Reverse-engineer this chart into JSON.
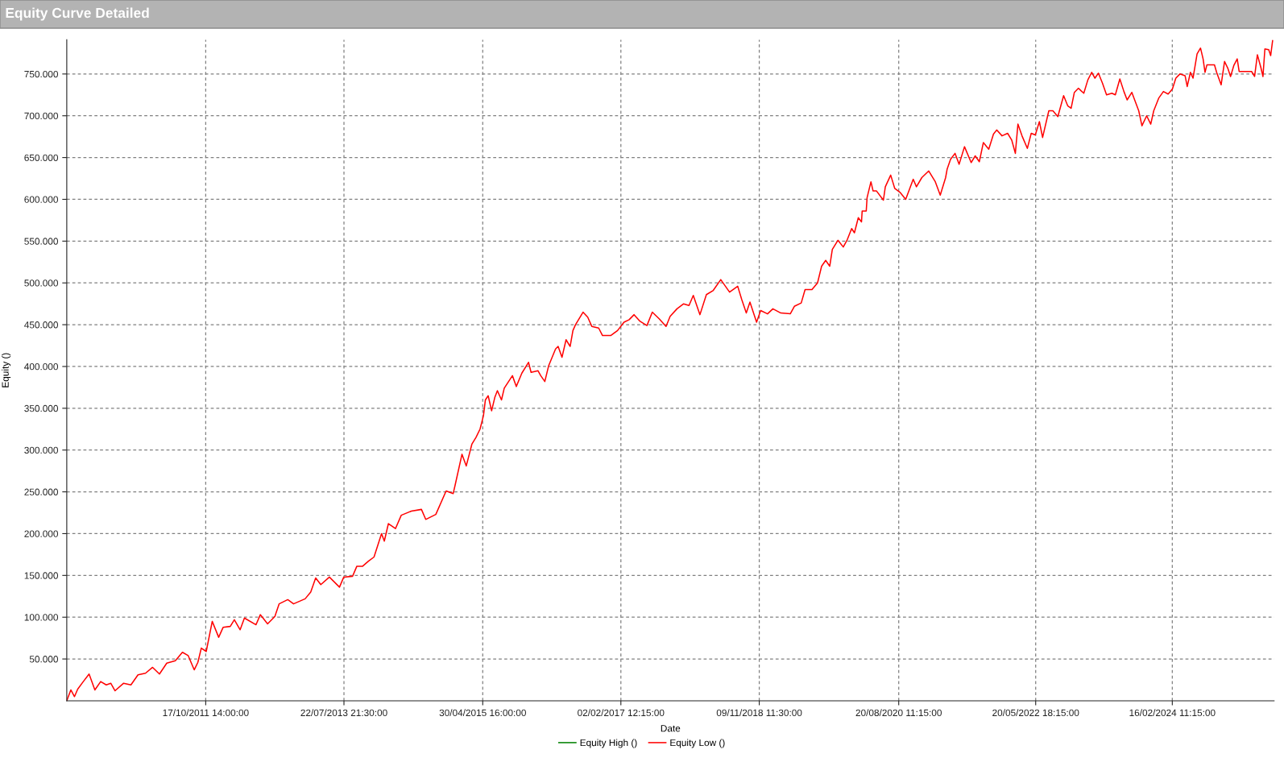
{
  "chart_data": {
    "type": "line",
    "title": "Equity Curve Detailed",
    "xlabel": "Date",
    "ylabel": "Equity ()",
    "x": [
      "2010-01-08",
      "2010-01-27",
      "2010-02-13",
      "2010-02-28",
      "2010-03-26",
      "2010-04-22",
      "2010-05-19",
      "2010-06-15",
      "2010-07-11",
      "2010-08-01",
      "2010-08-21",
      "2010-09-30",
      "2010-11-03",
      "2010-12-06",
      "2011-01-10",
      "2011-02-12",
      "2011-03-16",
      "2011-04-19",
      "2011-05-29",
      "2011-07-01",
      "2011-07-28",
      "2011-08-25",
      "2011-09-11",
      "2011-09-27",
      "2011-10-20",
      "2011-11-17",
      "2011-12-17",
      "2012-01-07",
      "2012-02-09",
      "2012-02-28",
      "2012-03-26",
      "2012-04-15",
      "2012-06-08",
      "2012-06-28",
      "2012-08-01",
      "2012-09-04",
      "2012-09-24",
      "2012-11-03",
      "2012-11-30",
      "2013-01-23",
      "2013-02-18",
      "2013-03-13",
      "2013-04-06",
      "2013-05-16",
      "2013-07-02",
      "2013-07-22",
      "2013-09-01",
      "2013-09-21",
      "2013-10-18",
      "2013-11-14",
      "2013-12-10",
      "2014-01-14",
      "2014-01-27",
      "2014-02-15",
      "2014-03-20",
      "2014-04-16",
      "2014-06-02",
      "2014-07-19",
      "2014-08-08",
      "2014-09-24",
      "2014-11-11",
      "2014-12-14",
      "2014-12-23",
      "2015-01-24",
      "2015-02-13",
      "2015-03-11",
      "2015-03-30",
      "2015-04-18",
      "2015-05-04",
      "2015-05-13",
      "2015-05-26",
      "2015-06-11",
      "2015-06-26",
      "2015-07-08",
      "2015-07-27",
      "2015-08-09",
      "2015-09-16",
      "2015-10-04",
      "2015-10-30",
      "2015-11-30",
      "2015-12-12",
      "2016-01-13",
      "2016-01-26",
      "2016-02-14",
      "2016-03-03",
      "2016-04-04",
      "2016-04-16",
      "2016-05-04",
      "2016-05-23",
      "2016-06-11",
      "2016-06-24",
      "2016-07-06",
      "2016-08-10",
      "2016-09-01",
      "2016-09-20",
      "2016-10-22",
      "2016-11-09",
      "2016-12-17",
      "2017-01-18",
      "2017-02-17",
      "2017-03-13",
      "2017-04-05",
      "2017-05-03",
      "2017-06-04",
      "2017-06-29",
      "2017-07-31",
      "2017-09-01",
      "2017-09-20",
      "2017-10-22",
      "2017-11-22",
      "2017-12-17",
      "2018-01-06",
      "2018-02-06",
      "2018-03-08",
      "2018-04-09",
      "2018-05-14",
      "2018-06-24",
      "2018-08-01",
      "2018-08-20",
      "2018-09-10",
      "2018-09-27",
      "2018-10-28",
      "2018-11-16",
      "2018-12-18",
      "2019-01-12",
      "2019-02-18",
      "2019-04-03",
      "2019-04-22",
      "2019-05-24",
      "2019-06-11",
      "2019-07-13",
      "2019-08-08",
      "2019-08-27",
      "2019-09-15",
      "2019-10-04",
      "2019-10-16",
      "2019-11-11",
      "2019-12-06",
      "2019-12-25",
      "2020-01-14",
      "2020-01-27",
      "2020-02-14",
      "2020-02-29",
      "2020-03-03",
      "2020-03-22",
      "2020-03-26",
      "2020-04-13",
      "2020-04-23",
      "2020-05-09",
      "2020-06-10",
      "2020-06-19",
      "2020-07-14",
      "2020-08-02",
      "2020-08-28",
      "2020-09-22",
      "2020-10-27",
      "2020-11-11",
      "2020-12-06",
      "2021-01-07",
      "2021-02-07",
      "2021-03-02",
      "2021-03-27",
      "2021-04-03",
      "2021-04-19",
      "2021-05-10",
      "2021-05-29",
      "2021-06-23",
      "2021-07-24",
      "2021-08-12",
      "2021-08-31",
      "2021-09-19",
      "2021-10-14",
      "2021-11-05",
      "2021-11-20",
      "2021-12-15",
      "2022-01-10",
      "2022-01-29",
      "2022-02-15",
      "2022-02-27",
      "2022-03-18",
      "2022-04-12",
      "2022-04-30",
      "2022-05-19",
      "2022-06-07",
      "2022-06-22",
      "2022-07-21",
      "2022-08-09",
      "2022-09-01",
      "2022-09-28",
      "2022-10-17",
      "2022-11-02",
      "2022-11-17",
      "2022-12-06",
      "2022-12-18",
      "2022-12-31",
      "2023-01-19",
      "2023-02-06",
      "2023-02-21",
      "2023-03-09",
      "2023-03-28",
      "2023-04-16",
      "2023-05-11",
      "2023-05-27",
      "2023-06-17",
      "2023-07-06",
      "2023-07-21",
      "2023-08-12",
      "2023-08-25",
      "2023-09-13",
      "2023-09-28",
      "2023-10-20",
      "2023-11-08",
      "2023-11-22",
      "2023-12-15",
      "2024-01-06",
      "2024-01-28",
      "2024-02-17",
      "2024-03-04",
      "2024-03-23",
      "2024-04-16",
      "2024-04-26",
      "2024-05-11",
      "2024-05-23",
      "2024-06-11",
      "2024-06-27",
      "2024-07-09",
      "2024-07-18",
      "2024-07-27",
      "2024-08-31",
      "2024-09-10",
      "2024-10-01",
      "2024-10-17",
      "2024-11-01",
      "2024-11-14",
      "2024-11-29",
      "2024-12-15",
      "2024-12-24",
      "2025-02-20",
      "2025-03-06",
      "2025-03-19",
      "2025-04-04",
      "2025-04-14",
      "2025-04-23",
      "2025-05-11",
      "2025-05-20",
      "2025-05-29"
    ],
    "series": [
      {
        "name": "Equity High ()",
        "color": "#008000",
        "values": [
          null,
          null,
          null,
          null,
          null,
          null,
          null,
          null,
          null,
          null,
          null,
          null,
          null,
          null,
          null,
          null,
          null,
          null,
          null,
          null,
          null,
          null,
          null,
          null,
          null,
          null,
          null,
          null,
          null,
          null,
          null,
          null,
          null,
          null,
          null,
          null,
          null,
          null,
          null,
          null,
          null,
          null,
          null,
          null,
          null,
          null,
          null,
          null,
          null,
          null,
          null,
          null,
          null,
          null,
          null,
          null,
          null,
          null,
          null,
          null,
          null,
          null,
          null,
          null,
          null,
          null,
          null,
          null,
          null,
          null,
          null,
          null,
          null,
          null,
          null,
          null,
          null,
          null,
          null,
          null,
          null,
          null,
          null,
          null,
          null,
          null,
          null,
          null,
          null,
          null,
          null,
          null,
          null,
          null,
          null,
          null,
          null,
          null,
          null,
          null,
          null,
          null,
          null,
          null,
          null,
          null,
          null,
          null,
          null,
          null,
          null,
          null,
          null,
          null,
          null,
          null,
          null,
          null,
          null,
          null,
          null,
          null,
          null,
          null,
          null,
          null,
          null,
          null,
          null,
          null,
          null,
          null,
          null,
          null,
          null,
          null,
          null,
          null,
          null,
          null,
          null,
          null,
          null,
          null,
          null,
          null,
          null,
          null,
          null,
          null,
          null,
          null,
          null,
          null,
          null,
          null,
          null,
          null,
          null,
          null,
          null,
          null,
          null,
          null,
          null,
          null,
          null,
          null,
          null,
          null,
          null,
          null,
          null,
          null,
          null,
          null,
          null,
          null,
          null,
          null,
          null,
          null,
          null,
          null,
          null,
          null,
          null,
          null,
          null,
          null,
          null,
          null,
          null,
          null,
          null,
          null,
          null,
          null,
          null,
          null,
          null,
          null,
          null,
          null,
          null,
          null,
          null,
          null,
          null,
          null,
          null,
          null,
          null,
          null,
          null,
          null,
          null,
          null,
          null,
          null,
          null,
          null,
          null,
          null,
          null,
          null,
          null,
          null,
          null,
          null,
          null,
          null,
          null,
          null,
          null,
          null,
          null,
          null,
          null,
          null,
          null,
          null,
          null,
          null,
          null,
          null
        ]
      },
      {
        "name": "Equity Low ()",
        "color": "#ff0000",
        "values": [
          0,
          13000,
          5000,
          14000,
          23000,
          32000,
          13000,
          23000,
          19000,
          21000,
          12000,
          21000,
          19000,
          31000,
          33000,
          40000,
          32000,
          45000,
          48000,
          58000,
          54000,
          37000,
          46000,
          63000,
          59000,
          95000,
          76000,
          88000,
          89000,
          97000,
          85000,
          99000,
          91000,
          103000,
          92000,
          101000,
          116000,
          121000,
          116000,
          122000,
          130000,
          147000,
          139000,
          148000,
          136000,
          148000,
          149000,
          161000,
          161000,
          167000,
          172000,
          200000,
          191000,
          212000,
          206000,
          222000,
          227000,
          229000,
          217000,
          223000,
          251000,
          248000,
          258000,
          295000,
          281000,
          307000,
          315000,
          325000,
          341000,
          360000,
          365000,
          347000,
          363000,
          371000,
          360000,
          374000,
          389000,
          376000,
          392000,
          405000,
          393000,
          395000,
          389000,
          382000,
          401000,
          421000,
          424000,
          411000,
          432000,
          424000,
          443000,
          450000,
          465000,
          459000,
          448000,
          446000,
          437000,
          437000,
          443000,
          453000,
          456000,
          462000,
          454000,
          449000,
          465000,
          457000,
          448000,
          460000,
          469000,
          475000,
          473000,
          485000,
          462000,
          486000,
          491000,
          504000,
          489000,
          496000,
          480000,
          464000,
          477000,
          453000,
          467000,
          463000,
          469000,
          464000,
          463000,
          472000,
          476000,
          492000,
          492000,
          500000,
          520000,
          527000,
          520000,
          540000,
          551000,
          543000,
          552000,
          565000,
          560000,
          578000,
          573000,
          586000,
          586000,
          602000,
          621000,
          610000,
          610000,
          599000,
          615000,
          629000,
          613000,
          608000,
          600000,
          624000,
          615000,
          626000,
          634000,
          621000,
          605000,
          626000,
          636000,
          648000,
          655000,
          642000,
          663000,
          644000,
          652000,
          645000,
          668000,
          660000,
          678000,
          683000,
          676000,
          679000,
          671000,
          655000,
          690000,
          676000,
          661000,
          679000,
          677000,
          693000,
          674000,
          706000,
          706000,
          699000,
          724000,
          712000,
          709000,
          728000,
          733000,
          730000,
          727000,
          743000,
          752000,
          745000,
          751000,
          739000,
          725000,
          727000,
          725000,
          744000,
          729000,
          719000,
          728000,
          719000,
          706000,
          688000,
          700000,
          690000,
          706000,
          721000,
          729000,
          726000,
          732000,
          745000,
          750000,
          748000,
          735000,
          752000,
          745000,
          774000,
          781000,
          768000,
          752000,
          761000,
          761000,
          752000,
          737000,
          765000,
          757000,
          747000,
          760000,
          768000,
          753000,
          753000,
          747000,
          773000,
          758000,
          747000,
          780000,
          779000,
          772000,
          790000
        ]
      }
    ],
    "xlim": [
      "2010-01-08",
      "2025-06-05"
    ],
    "ylim": [
      0,
      791000
    ],
    "xticks": [
      {
        "value": "2011-10-17T14:00",
        "label": "17/10/2011 14:00:00"
      },
      {
        "value": "2013-07-22T21:30",
        "label": "22/07/2013 21:30:00"
      },
      {
        "value": "2015-04-30T16:00",
        "label": "30/04/2015 16:00:00"
      },
      {
        "value": "2017-02-02T12:15",
        "label": "02/02/2017 12:15:00"
      },
      {
        "value": "2018-11-09T11:30",
        "label": "09/11/2018 11:30:00"
      },
      {
        "value": "2020-08-20T11:15",
        "label": "20/08/2020 11:15:00"
      },
      {
        "value": "2022-05-20T18:15",
        "label": "20/05/2022 18:15:00"
      },
      {
        "value": "2024-02-16T11:15",
        "label": "16/02/2024 11:15:00"
      }
    ],
    "yticks": [
      {
        "value": 50000,
        "label": "50.000"
      },
      {
        "value": 100000,
        "label": "100.000"
      },
      {
        "value": 150000,
        "label": "150.000"
      },
      {
        "value": 200000,
        "label": "200.000"
      },
      {
        "value": 250000,
        "label": "250.000"
      },
      {
        "value": 300000,
        "label": "300.000"
      },
      {
        "value": 350000,
        "label": "350.000"
      },
      {
        "value": 400000,
        "label": "400.000"
      },
      {
        "value": 450000,
        "label": "450.000"
      },
      {
        "value": 500000,
        "label": "500.000"
      },
      {
        "value": 550000,
        "label": "550.000"
      },
      {
        "value": 600000,
        "label": "600.000"
      },
      {
        "value": 650000,
        "label": "650.000"
      },
      {
        "value": 700000,
        "label": "700.000"
      },
      {
        "value": 750000,
        "label": "750.000"
      }
    ],
    "grid": true,
    "legend": "bottom"
  }
}
